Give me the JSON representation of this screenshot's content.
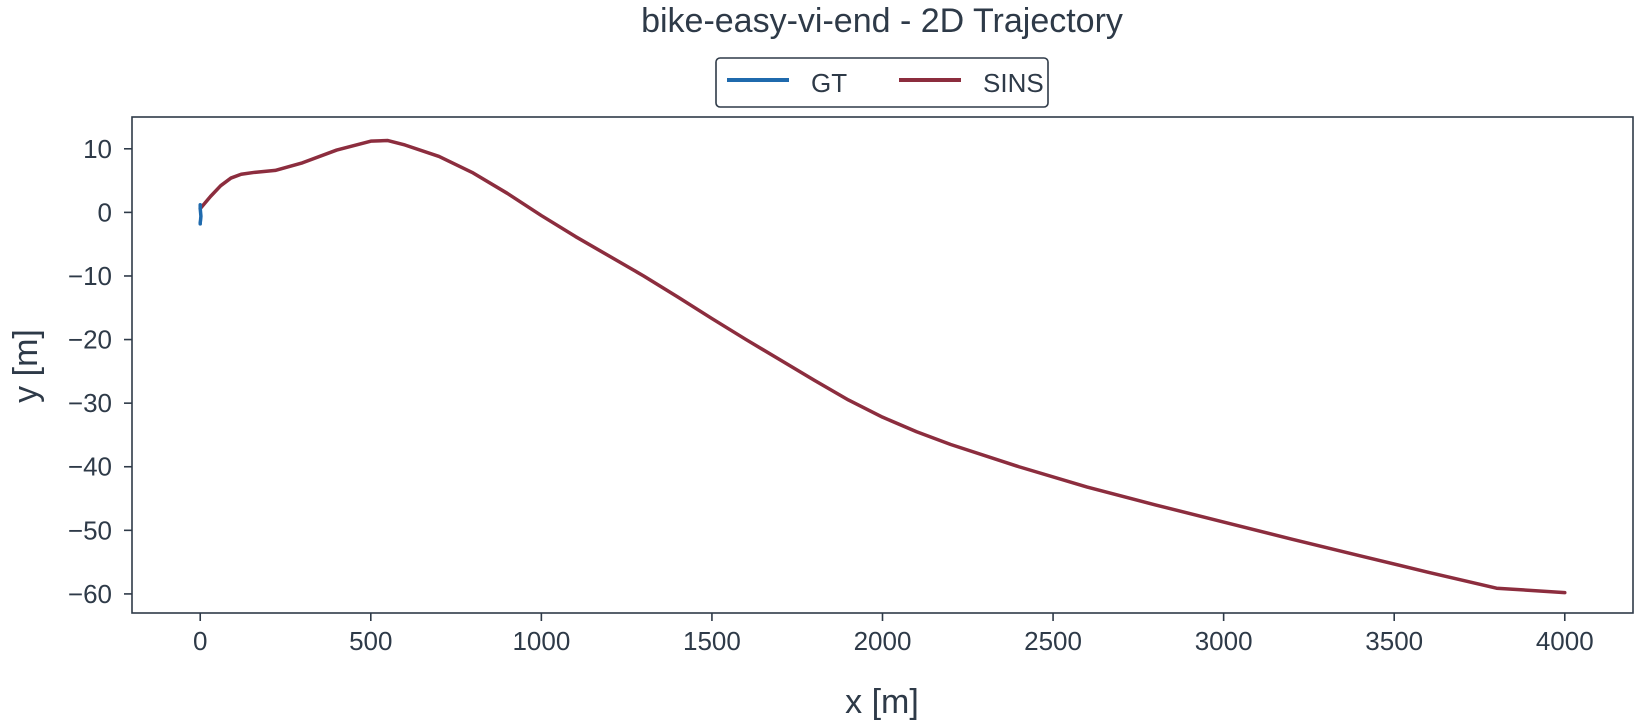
{
  "chart_data": {
    "type": "line",
    "title": "bike-easy-vi-end - 2D Trajectory",
    "xlabel": "x [m]",
    "ylabel": "y [m]",
    "xlim": [
      -200,
      4200
    ],
    "ylim": [
      -63,
      15
    ],
    "xticks": [
      0,
      500,
      1000,
      1500,
      2000,
      2500,
      3000,
      3500,
      4000
    ],
    "xtick_labels": [
      "0",
      "500",
      "1000",
      "1500",
      "2000",
      "2500",
      "3000",
      "3500",
      "4000"
    ],
    "yticks": [
      10,
      0,
      -10,
      -20,
      -30,
      -40,
      -50,
      -60
    ],
    "ytick_labels": [
      "10",
      "0",
      "−10",
      "−20",
      "−30",
      "−40",
      "−50",
      "−60"
    ],
    "grid": false,
    "legend_position": "top-center",
    "series": [
      {
        "name": "GT",
        "color": "#1f6aad",
        "x": [
          0,
          0,
          1,
          2,
          1,
          0,
          0
        ],
        "y": [
          1.2,
          0.6,
          0,
          -0.6,
          -1.2,
          -1.6,
          -1.8
        ]
      },
      {
        "name": "SINS",
        "color": "#8c2d3e",
        "x": [
          0,
          30,
          60,
          90,
          120,
          160,
          220,
          300,
          400,
          500,
          550,
          600,
          700,
          800,
          900,
          1000,
          1100,
          1200,
          1300,
          1400,
          1500,
          1600,
          1700,
          1800,
          1900,
          2000,
          2100,
          2200,
          2400,
          2600,
          2800,
          3000,
          3200,
          3400,
          3600,
          3800,
          4000
        ],
        "y": [
          0.6,
          2.5,
          4.2,
          5.4,
          6.0,
          6.3,
          6.6,
          7.8,
          9.8,
          11.2,
          11.3,
          10.6,
          8.8,
          6.2,
          3.0,
          -0.5,
          -3.8,
          -6.9,
          -10.0,
          -13.3,
          -16.7,
          -20.0,
          -23.2,
          -26.4,
          -29.5,
          -32.2,
          -34.5,
          -36.5,
          -40.0,
          -43.2,
          -46.0,
          -48.7,
          -51.4,
          -54.0,
          -56.6,
          -59.1,
          -59.8
        ]
      }
    ]
  }
}
